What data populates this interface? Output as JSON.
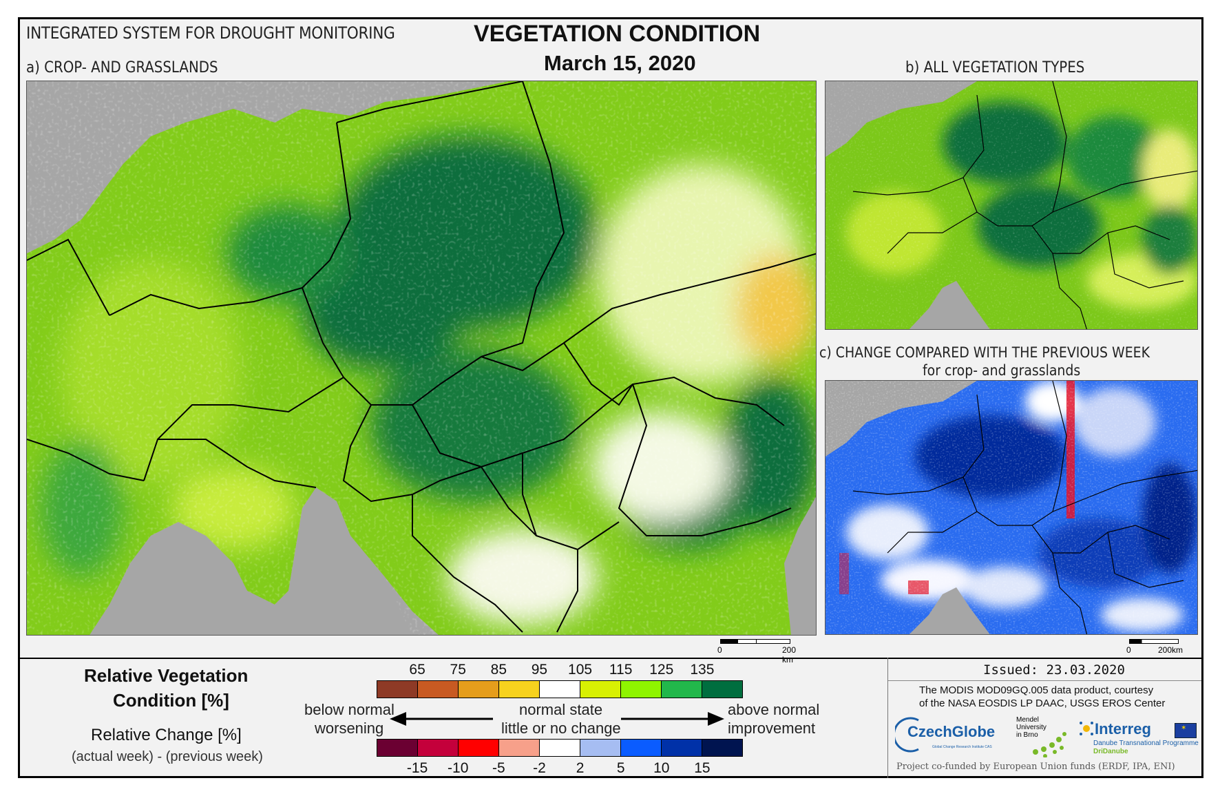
{
  "header": {
    "system_title": "INTEGRATED SYSTEM FOR DROUGHT MONITORING",
    "main_title": "VEGETATION CONDITION",
    "date": "March 15, 2020"
  },
  "panels": {
    "a_label": "a) CROP- AND GRASSLANDS",
    "b_label": "b) ALL VEGETATION TYPES",
    "c_label_1": "c) CHANGE COMPARED WITH THE PREVIOUS WEEK",
    "c_label_2": "for crop- and grasslands"
  },
  "scalebars": {
    "main": {
      "start": "0",
      "end": "200 km"
    },
    "small": {
      "start": "0",
      "end": "200km"
    }
  },
  "legend": {
    "rvc_title_1": "Relative Vegetation",
    "rvc_title_2": "Condition [%]",
    "rc_title": "Relative Change [%]",
    "rc_subtitle": "(actual week) - (previous week)",
    "rvc_ticks": [
      "65",
      "75",
      "85",
      "95",
      "105",
      "115",
      "125",
      "135"
    ],
    "rvc_colors": [
      "#8e3a26",
      "#c85a22",
      "#e59d1c",
      "#f7d21e",
      "#ffffff",
      "#d8f003",
      "#8ff400",
      "#22b84b",
      "#006e3f"
    ],
    "rc_ticks": [
      "-15",
      "-10",
      "-5",
      "-2",
      "2",
      "5",
      "10",
      "15"
    ],
    "rc_colors": [
      "#6b0032",
      "#c4003b",
      "#ff0000",
      "#f7a08a",
      "#ffffff",
      "#a6bdf2",
      "#0a5cff",
      "#0031a8",
      "#001450"
    ],
    "below_1": "below normal",
    "below_2": "worsening",
    "normal_1": "normal state",
    "normal_2": "little or no change",
    "above_1": "above normal",
    "above_2": "improvement"
  },
  "footer": {
    "issued": "Issued: 23.03.2020",
    "credit_1": "The MODIS MOD09GQ.005 data product, courtesy",
    "credit_2": "of the NASA EOSDIS LP DAAC, USGS EROS Center",
    "czechglobe": "CzechGlobe",
    "czechglobe_sub": "Global Change Research Institute CAS",
    "mendel_1": "Mendel",
    "mendel_2": "University",
    "mendel_3": "in Brno",
    "interreg": "Interreg",
    "interreg_sub_1": "Danube Transnational Programme",
    "interreg_sub_2": "DriDanube",
    "funding": "Project co-funded by European Union funds (ERDF, IPA, ENI)"
  }
}
